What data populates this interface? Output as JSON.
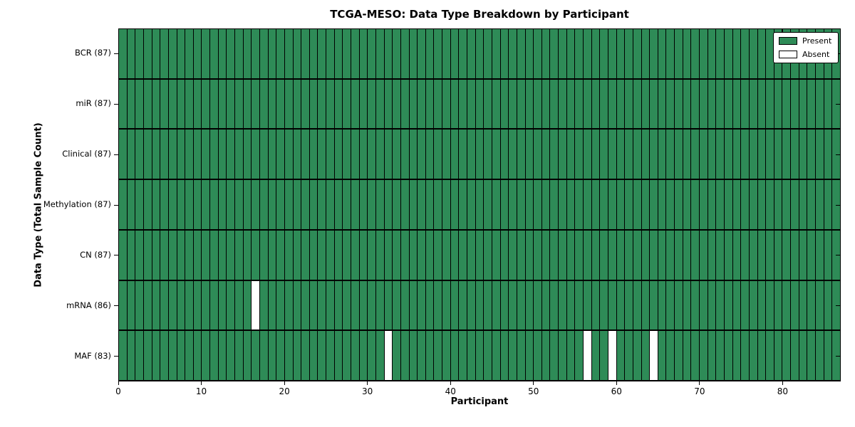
{
  "chart_data": {
    "type": "heatmap",
    "title": "TCGA-MESO: Data Type Breakdown by Participant",
    "xlabel": "Participant",
    "ylabel": "Data Type (Total Sample Count)",
    "n_participants": 87,
    "xlim": [
      0,
      87
    ],
    "x_ticks": [
      0,
      10,
      20,
      30,
      40,
      50,
      60,
      70,
      80
    ],
    "rows": [
      {
        "label": "BCR (87)",
        "data_type": "BCR",
        "present_count": 87,
        "absent_participants": []
      },
      {
        "label": "miR (87)",
        "data_type": "miR",
        "present_count": 87,
        "absent_participants": []
      },
      {
        "label": "Clinical (87)",
        "data_type": "Clinical",
        "present_count": 87,
        "absent_participants": []
      },
      {
        "label": "Methylation (87)",
        "data_type": "Methylation",
        "present_count": 87,
        "absent_participants": []
      },
      {
        "label": "CN (87)",
        "data_type": "CN",
        "present_count": 87,
        "absent_participants": []
      },
      {
        "label": "mRNA (86)",
        "data_type": "mRNA",
        "present_count": 86,
        "absent_participants": [
          16
        ]
      },
      {
        "label": "MAF (83)",
        "data_type": "MAF",
        "present_count": 83,
        "absent_participants": [
          32,
          56,
          59,
          64
        ]
      }
    ],
    "legend": [
      {
        "label": "Present",
        "color": "#2e8b57"
      },
      {
        "label": "Absent",
        "color": "#ffffff"
      }
    ],
    "legend_position": "upper-right",
    "grid": "cell-borders",
    "line_color": "#000000",
    "background_color": "#ffffff"
  }
}
